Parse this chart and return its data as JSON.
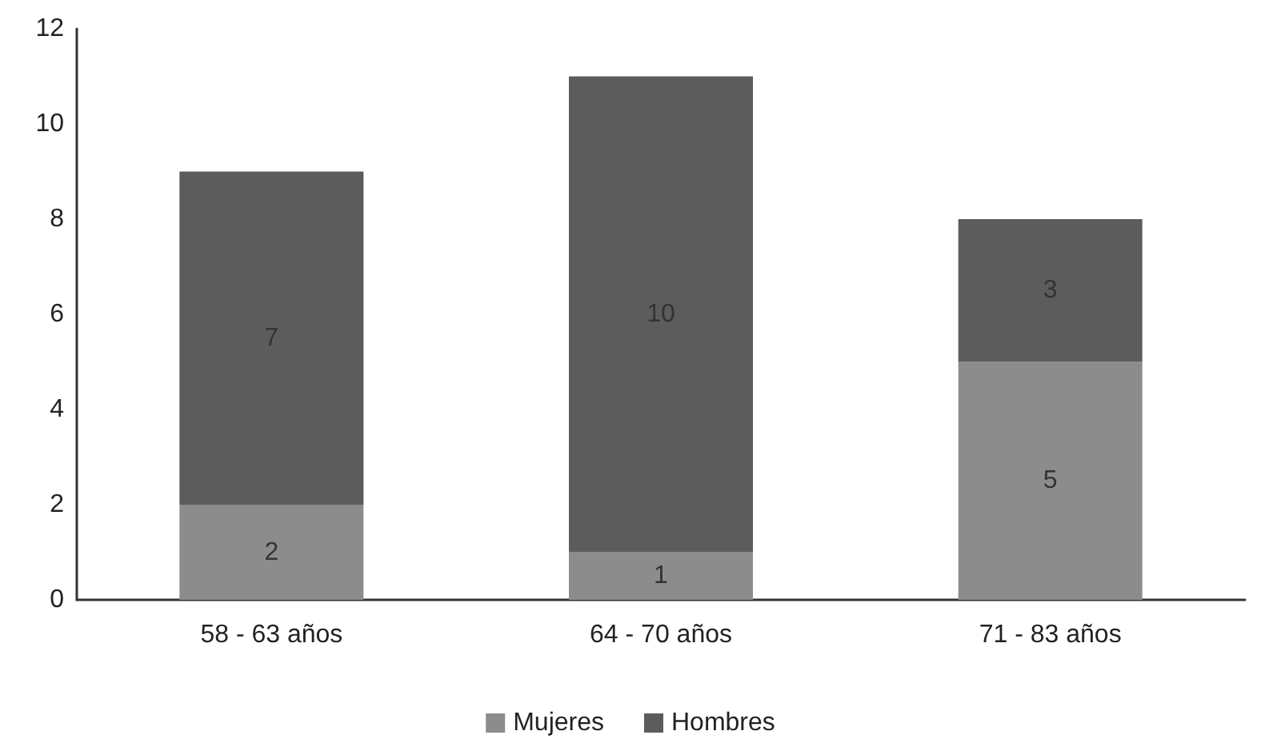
{
  "chart_data": {
    "type": "bar",
    "stacked": true,
    "categories": [
      "58 - 63 años",
      "64 - 70 años",
      "71 - 83 años"
    ],
    "series": [
      {
        "name": "Mujeres",
        "color": "#8c8c8c",
        "values": [
          2,
          1,
          5
        ]
      },
      {
        "name": "Hombres",
        "color": "#5c5c5c",
        "values": [
          7,
          10,
          3
        ]
      }
    ],
    "ylim": [
      0,
      12
    ],
    "yticks": [
      0,
      2,
      4,
      6,
      8,
      10,
      12
    ],
    "grid": false,
    "legend": "bottom",
    "data_labels": true
  }
}
